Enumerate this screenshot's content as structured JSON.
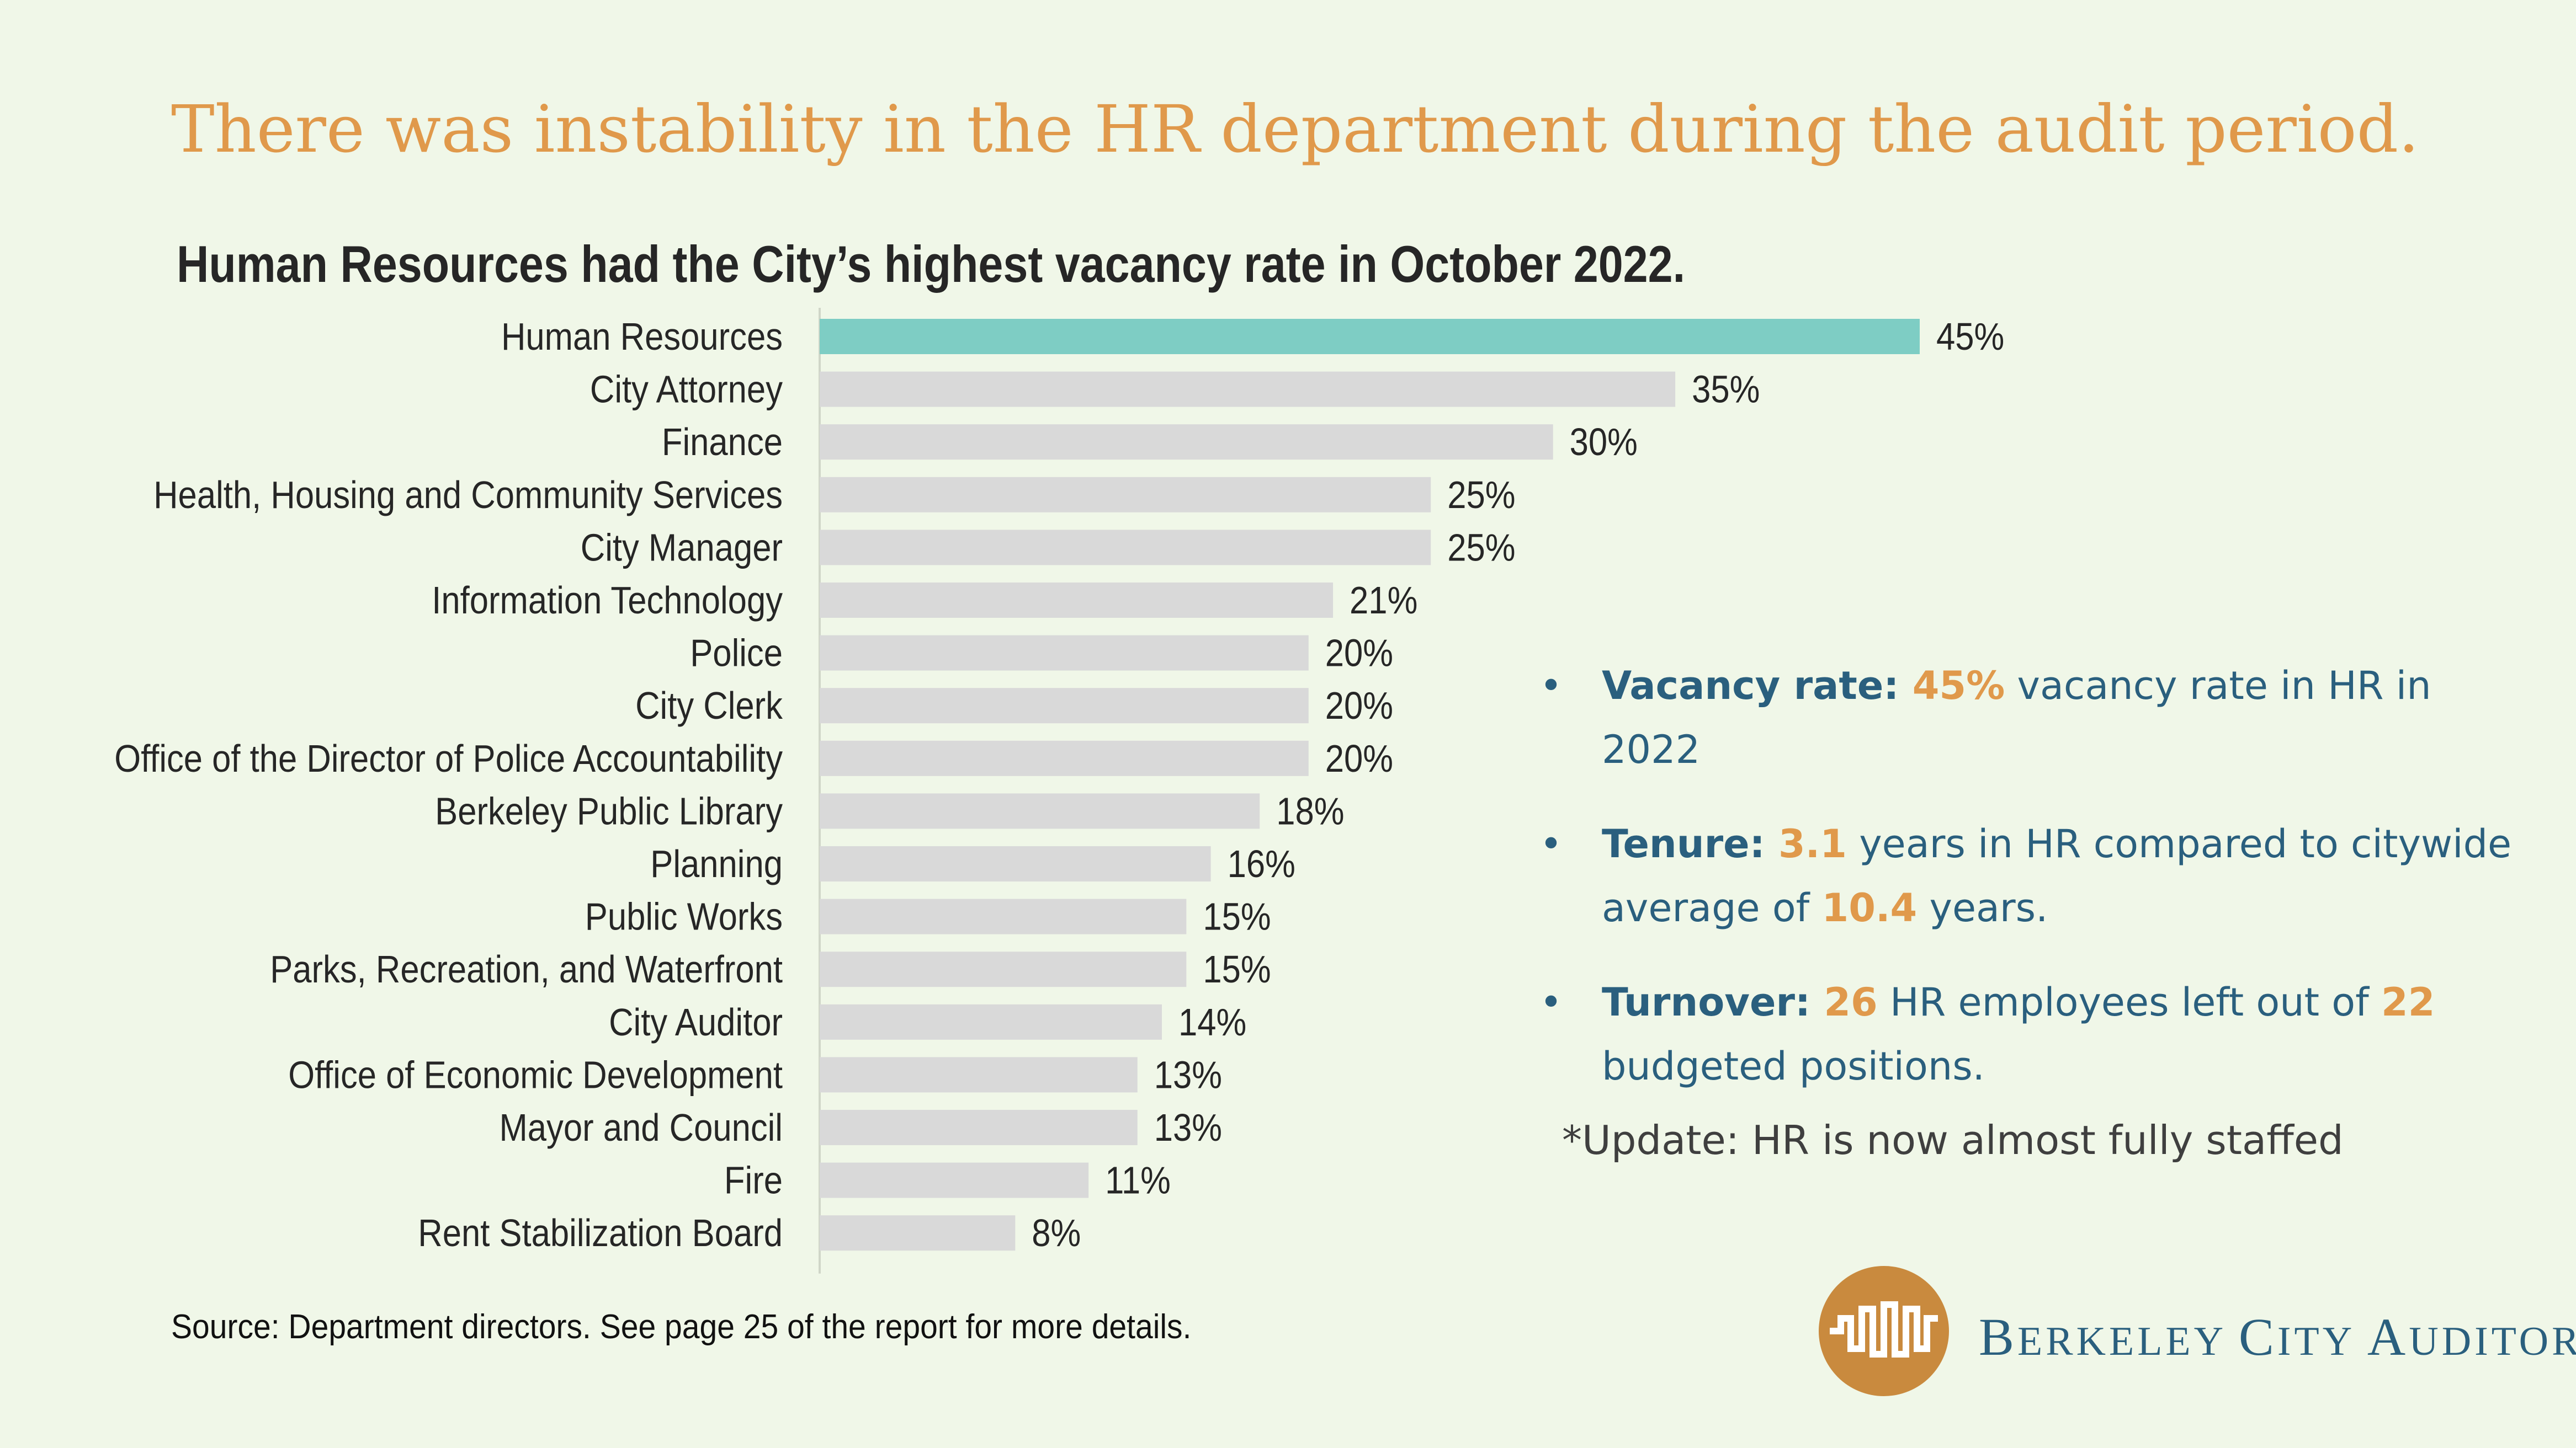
{
  "headline": "There was instability in the HR department during the audit period.",
  "chart_data": {
    "type": "bar",
    "orientation": "horizontal",
    "title": "Human Resources had the City’s highest vacancy rate in October 2022.",
    "categories": [
      "Human Resources",
      "City Attorney",
      "Finance",
      "Health, Housing and Community Services",
      "City Manager",
      "Information Technology",
      "Police",
      "City Clerk",
      "Office of the Director of Police Accountability",
      "Berkeley Public Library",
      "Planning",
      "Public Works",
      "Parks, Recreation, and Waterfront",
      "City Auditor",
      "Office of Economic Development",
      "Mayor and Council",
      "Fire",
      "Rent Stabilization Board"
    ],
    "values": [
      45,
      35,
      30,
      25,
      25,
      21,
      20,
      20,
      20,
      18,
      16,
      15,
      15,
      14,
      13,
      13,
      11,
      8
    ],
    "labels": [
      "45%",
      "35%",
      "30%",
      "25%",
      "25%",
      "21%",
      "20%",
      "20%",
      "20%",
      "18%",
      "16%",
      "15%",
      "15%",
      "14%",
      "13%",
      "13%",
      "11%",
      "8%"
    ],
    "unit": "%",
    "highlight_index": 0,
    "highlight_color": "#7ecdc4",
    "bar_color": "#d9d9d9",
    "xlim": [
      0,
      50
    ],
    "grid": false
  },
  "bullets": [
    {
      "label": "Vacancy rate:",
      "parts": [
        {
          "v": "45%",
          "hl": true
        },
        {
          "v": " vacancy rate in HR in 2022",
          "hl": false
        }
      ]
    },
    {
      "label": "Tenure:",
      "parts": [
        {
          "v": "3.1",
          "hl": true
        },
        {
          "v": " years in HR compared to citywide average of ",
          "hl": false
        },
        {
          "v": "10.4",
          "hl": true
        },
        {
          "v": " years.",
          "hl": false
        }
      ]
    },
    {
      "label": "Turnover:",
      "parts": [
        {
          "v": "26",
          "hl": true
        },
        {
          "v": " HR employees left out of ",
          "hl": false
        },
        {
          "v": "22",
          "hl": true
        },
        {
          "v": " budgeted positions.",
          "hl": false
        }
      ]
    }
  ],
  "bullet_glyph": "•",
  "update_note": "*Update: HR is now almost fully staffed",
  "source": "Source: Department directors. See page 25 of the report for more details.",
  "brand": {
    "name": "Berkeley City Auditor"
  },
  "colors": {
    "background": "#f0f7e8",
    "accent": "#e0994b",
    "blue": "#2a5f7e",
    "logo": "#c98a3e"
  }
}
